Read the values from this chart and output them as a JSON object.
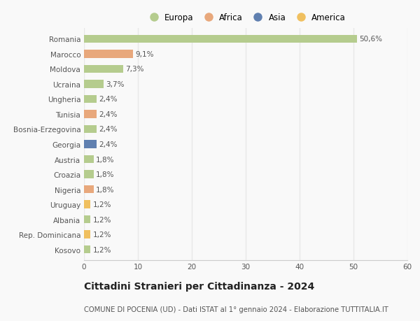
{
  "categories": [
    "Romania",
    "Marocco",
    "Moldova",
    "Ucraina",
    "Ungheria",
    "Tunisia",
    "Bosnia-Erzegovina",
    "Georgia",
    "Austria",
    "Croazia",
    "Nigeria",
    "Uruguay",
    "Albania",
    "Rep. Dominicana",
    "Kosovo"
  ],
  "values": [
    50.6,
    9.1,
    7.3,
    3.7,
    2.4,
    2.4,
    2.4,
    2.4,
    1.8,
    1.8,
    1.8,
    1.2,
    1.2,
    1.2,
    1.2
  ],
  "labels": [
    "50,6%",
    "9,1%",
    "7,3%",
    "3,7%",
    "2,4%",
    "2,4%",
    "2,4%",
    "2,4%",
    "1,8%",
    "1,8%",
    "1,8%",
    "1,2%",
    "1,2%",
    "1,2%",
    "1,2%"
  ],
  "continents": [
    "Europa",
    "Africa",
    "Europa",
    "Europa",
    "Europa",
    "Africa",
    "Europa",
    "Asia",
    "Europa",
    "Europa",
    "Africa",
    "America",
    "Europa",
    "America",
    "Europa"
  ],
  "colors": {
    "Europa": "#b5cc8e",
    "Africa": "#e8a87c",
    "Asia": "#6080b0",
    "America": "#f0c060"
  },
  "xlim": [
    0,
    60
  ],
  "xticks": [
    0,
    10,
    20,
    30,
    40,
    50,
    60
  ],
  "title": "Cittadini Stranieri per Cittadinanza - 2024",
  "subtitle": "COMUNE DI POCENIA (UD) - Dati ISTAT al 1° gennaio 2024 - Elaborazione TUTTITALIA.IT",
  "background_color": "#f9f9f9",
  "grid_color": "#e8e8e8",
  "bar_height": 0.55,
  "label_fontsize": 7.5,
  "tick_fontsize": 7.5,
  "title_fontsize": 10,
  "subtitle_fontsize": 7.2,
  "legend_order": [
    "Europa",
    "Africa",
    "Asia",
    "America"
  ]
}
